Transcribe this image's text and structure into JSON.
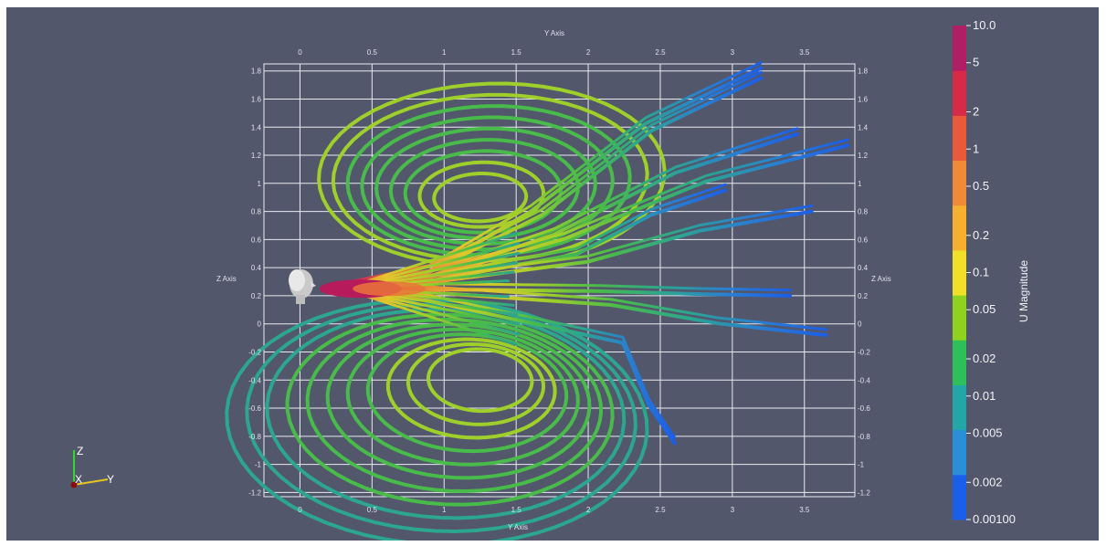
{
  "chart_data": {
    "type": "line",
    "title": "",
    "top_axis_label": "Y Axis",
    "bottom_axis_label": "Y Axis",
    "left_axis_label": "Z Axis",
    "right_axis_label": "Z Axis",
    "x_ticks": [
      "0",
      "0.5",
      "1",
      "1.5",
      "2",
      "2.5",
      "3",
      "3.5"
    ],
    "y_ticks": [
      "1.8",
      "1.6",
      "1.4",
      "1.2",
      "1",
      "0.8",
      "0.6",
      "0.4",
      "0.2",
      "0",
      "-0.2",
      "-0.4",
      "-0.6",
      "-0.8",
      "-1",
      "-1.2"
    ],
    "xlim": [
      -0.25,
      3.85
    ],
    "ylim": [
      -1.23,
      1.85
    ],
    "grid": true,
    "colorbar": {
      "title": "U Magnitude",
      "labels": [
        "10.0",
        "5",
        "2",
        "1",
        "0.5",
        "0.2",
        "0.1",
        "0.05",
        "0.02",
        "0.01",
        "0.005",
        "0.002",
        "0.00100"
      ],
      "scale": "log",
      "range": [
        0.001,
        10.0
      ],
      "colors": [
        "#1a5fe8",
        "#2a8fd6",
        "#22a6a6",
        "#2ebf5a",
        "#8ed11f",
        "#f0e02a",
        "#f5b030",
        "#f08a3a",
        "#e85a3a",
        "#d62a48",
        "#b01e66"
      ]
    },
    "streamlines": {
      "source": [
        0.3,
        0.25
      ],
      "upper_vortex_center": [
        1.3,
        0.9
      ],
      "lower_vortex_center": [
        1.25,
        -0.4
      ],
      "outflow_ends": [
        [
          3.2,
          1.82
        ],
        [
          3.2,
          1.75
        ],
        [
          3.45,
          1.35
        ],
        [
          3.8,
          1.27
        ],
        [
          2.95,
          0.95
        ],
        [
          3.55,
          0.8
        ],
        [
          3.4,
          0.2
        ],
        [
          3.65,
          -0.08
        ],
        [
          2.6,
          -0.85
        ]
      ]
    },
    "orientation_axes": [
      "Z",
      "X",
      "Y"
    ]
  }
}
